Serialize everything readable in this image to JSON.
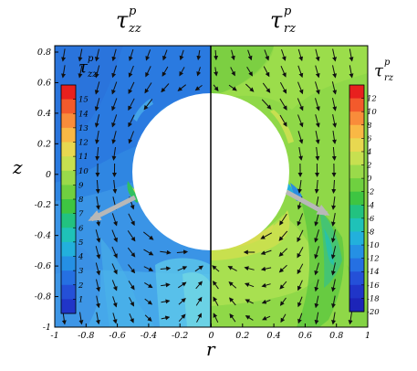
{
  "titles": {
    "left_main": "τ",
    "left_sup": "p",
    "left_sub": "zz",
    "right_main": "τ",
    "right_sup": "p",
    "right_sub": "rz"
  },
  "axes": {
    "xlabel": "r",
    "ylabel": "z",
    "x_ticks": [
      "-1",
      "-0.8",
      "-0.6",
      "-0.4",
      "-0.2",
      "0",
      "0.2",
      "0.4",
      "0.6",
      "0.8",
      "1"
    ],
    "y_ticks": [
      "0.8",
      "0.6",
      "0.4",
      "0.2",
      "0",
      "-0.2",
      "-0.4",
      "-0.6",
      "-0.8",
      "-1"
    ]
  },
  "left_colorbar": {
    "label_main": "τ",
    "label_sup": "p",
    "label_sub": "zz",
    "tick_labels": [
      "15",
      "14",
      "13",
      "12",
      "11",
      "10",
      "9",
      "8",
      "7",
      "6",
      "5",
      "4",
      "3",
      "2",
      "1"
    ],
    "colors": [
      "#e8201e",
      "#f35a2c",
      "#f98c3a",
      "#f9b845",
      "#e8d850",
      "#c7e050",
      "#9ada4a",
      "#6fd040",
      "#3ec542",
      "#22c280",
      "#1fc2b8",
      "#22b0dc",
      "#2590e4",
      "#2570e2",
      "#2450d8",
      "#2035c8"
    ]
  },
  "right_colorbar": {
    "label_main": "τ",
    "label_sup": "p",
    "label_sub": "rz",
    "tick_labels": [
      "12",
      "10",
      "8",
      "6",
      "4",
      "2",
      "0",
      "-2",
      "-4",
      "-6",
      "-8",
      "-10",
      "-12",
      "-14",
      "-16",
      "-18",
      "-20"
    ],
    "colors": [
      "#e8201e",
      "#f35a2c",
      "#f98c3a",
      "#f9b845",
      "#e8d850",
      "#c7e050",
      "#9ada4a",
      "#6fd040",
      "#3ec542",
      "#22c280",
      "#1fc2b8",
      "#22b0dc",
      "#2590e4",
      "#2570e2",
      "#2450d8",
      "#2035c8",
      "#1c24b8"
    ]
  },
  "colors": {
    "left_field": "#2f86e2",
    "right_field": "#8fd848",
    "cylinder": "#ffffff",
    "arrows": "#111111",
    "wake_arrow": "#b8b8b8"
  }
}
